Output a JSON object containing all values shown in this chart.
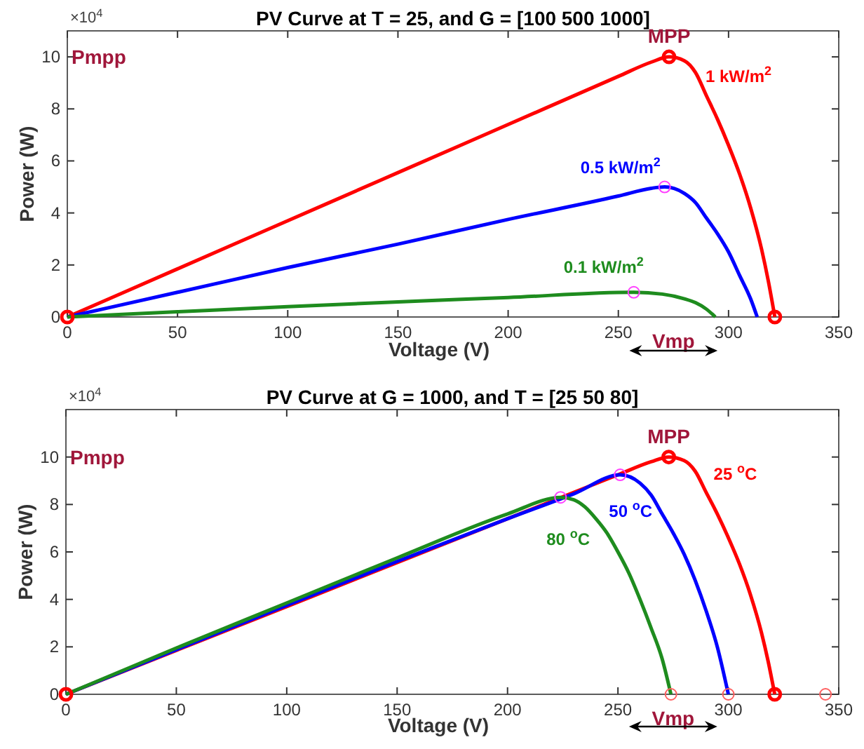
{
  "chart_data": [
    {
      "type": "line",
      "title": "PV Curve at T = 25, and G = [100 500 1000]",
      "xlabel": "Voltage (V)",
      "ylabel": "Power (W)",
      "xlim": [
        0,
        350
      ],
      "xticks": [
        0,
        50,
        100,
        150,
        200,
        250,
        300,
        350
      ],
      "ylim": [
        0,
        11
      ],
      "yticks": [
        0,
        2,
        4,
        6,
        8,
        10
      ],
      "grid": false,
      "legend": false,
      "marker": "none",
      "line_style": "solid",
      "annotations": [
        "×10$^{4}$",
        "Pmpp",
        "Vmp",
        {
          "text": "MPP",
          "x": 273,
          "y": 10
        }
      ],
      "series": [
        {
          "name": "1 kW/m$^{2}$",
          "color": "#ff0000",
          "x": [
            0,
            50,
            100,
            150,
            200,
            250,
            265,
            273,
            280,
            285,
            290,
            295,
            300,
            305,
            310,
            315,
            318,
            321
          ],
          "values": [
            0,
            1.85,
            3.7,
            5.55,
            7.4,
            9.25,
            9.8,
            10,
            9.85,
            9.4,
            8.5,
            7.6,
            6.6,
            5.5,
            4.2,
            2.6,
            1.4,
            0
          ]
        },
        {
          "name": "0.5 kW/m$^{2}$",
          "color": "#0000ff",
          "x": [
            0,
            50,
            100,
            150,
            200,
            250,
            265,
            271,
            280,
            285,
            290,
            295,
            300,
            305,
            310,
            313
          ],
          "values": [
            0,
            0.95,
            1.9,
            2.8,
            3.75,
            4.65,
            4.95,
            5,
            4.75,
            4.4,
            3.8,
            3.2,
            2.5,
            1.6,
            0.7,
            0
          ]
        },
        {
          "name": "0.1 kW/m$^{2}$",
          "color": "#1e8c1e",
          "x": [
            0,
            50,
            100,
            150,
            200,
            257,
            270,
            280,
            285,
            290,
            294
          ],
          "values": [
            0,
            0.2,
            0.4,
            0.58,
            0.75,
            0.95,
            0.88,
            0.7,
            0.55,
            0.3,
            0
          ]
        },
        {
          "type": "scatter",
          "marker": "circle",
          "color": "#ff0000",
          "x": [
            0,
            273,
            321
          ],
          "values": [
            0,
            10,
            0
          ]
        },
        {
          "type": "scatter",
          "marker": "circle",
          "color": "#ff40ff",
          "x": [
            271,
            257
          ],
          "values": [
            5,
            0.95
          ]
        }
      ]
    },
    {
      "type": "line",
      "title": "PV Curve at G = 1000, and T = [25 50 80]",
      "xlabel": "Voltage (V)",
      "ylabel": "Power (W)",
      "xlim": [
        0,
        350
      ],
      "xticks": [
        0,
        50,
        100,
        150,
        200,
        250,
        300,
        350
      ],
      "ylim": [
        0,
        12
      ],
      "yticks": [
        0,
        2,
        4,
        6,
        8,
        10
      ],
      "grid": false,
      "legend": false,
      "marker": "none",
      "line_style": "solid",
      "annotations": [
        "×10$^{4}$",
        "Pmpp",
        "Vmp",
        {
          "text": "MPP",
          "x": 273,
          "y": 10
        }
      ],
      "series": [
        {
          "name": "25 $^{o}$C",
          "color": "#ff0000",
          "x": [
            0,
            50,
            100,
            150,
            200,
            250,
            265,
            273,
            280,
            285,
            290,
            295,
            300,
            305,
            310,
            315,
            318,
            321
          ],
          "values": [
            0,
            1.85,
            3.7,
            5.55,
            7.4,
            9.25,
            9.8,
            10,
            9.85,
            9.4,
            8.5,
            7.6,
            6.6,
            5.5,
            4.2,
            2.6,
            1.4,
            0
          ]
        },
        {
          "name": "50 $^{o}$C",
          "color": "#0000ff",
          "x": [
            0,
            50,
            100,
            150,
            200,
            230,
            251,
            260,
            265,
            270,
            275,
            280,
            285,
            290,
            295,
            300
          ],
          "values": [
            0,
            1.88,
            3.75,
            5.6,
            7.4,
            8.45,
            9.25,
            8.9,
            8.4,
            7.6,
            6.8,
            5.9,
            4.8,
            3.5,
            2,
            0
          ]
        },
        {
          "name": "80 $^{o}$C",
          "color": "#1e8c1e",
          "x": [
            0,
            50,
            100,
            150,
            200,
            224,
            230,
            235,
            240,
            245,
            250,
            255,
            260,
            265,
            270,
            274
          ],
          "values": [
            0,
            1.95,
            3.85,
            5.75,
            7.6,
            8.3,
            8.2,
            7.9,
            7.4,
            6.8,
            6,
            5.1,
            4,
            2.8,
            1.5,
            0
          ]
        },
        {
          "type": "scatter",
          "marker": "circle",
          "color": "#ff0000",
          "x": [
            0,
            273,
            321
          ],
          "values": [
            0,
            10,
            0
          ]
        },
        {
          "type": "scatter",
          "marker": "circle",
          "color": "#ff6060",
          "x": [
            274,
            300,
            344
          ],
          "values": [
            0,
            0,
            0
          ]
        },
        {
          "type": "scatter",
          "marker": "circle",
          "color": "#ff40ff",
          "x": [
            251,
            224
          ],
          "values": [
            9.25,
            8.3
          ]
        }
      ]
    }
  ]
}
